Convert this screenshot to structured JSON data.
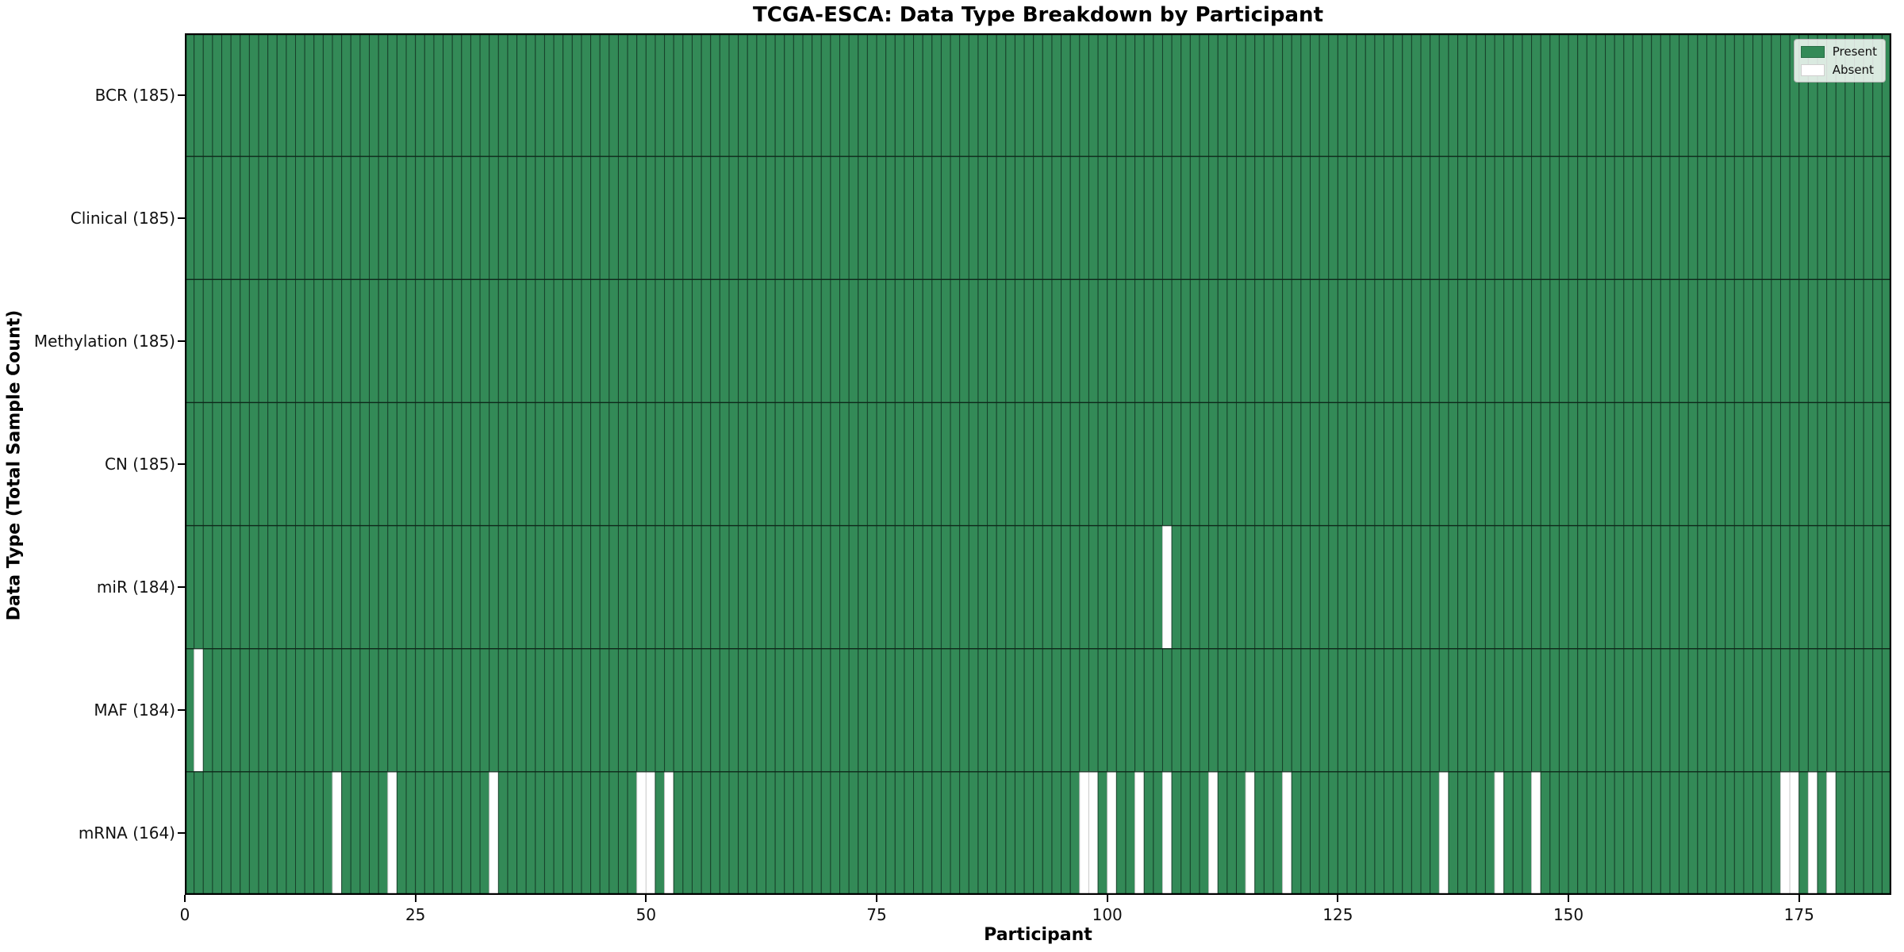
{
  "chart_data": {
    "type": "heatmap",
    "title": "TCGA-ESCA: Data Type Breakdown by Participant",
    "xlabel": "Participant",
    "ylabel": "Data Type (Total Sample Count)",
    "n_participants": 185,
    "x_axis": {
      "ticks": [
        0,
        25,
        50,
        75,
        100,
        125,
        150,
        175
      ],
      "range": [
        0,
        185
      ]
    },
    "legend": {
      "present_label": "Present",
      "absent_label": "Absent",
      "position": "upper right"
    },
    "colors": {
      "present": "#338a57",
      "absent": "#ffffff",
      "present_cell_border": "#17402a",
      "absent_cell_border": "#cccccc",
      "row_separator": "#0d2418",
      "frame": "#000000"
    },
    "rows": [
      {
        "label": "BCR",
        "count": 185,
        "display": "BCR (185)",
        "absent_participants": []
      },
      {
        "label": "Clinical",
        "count": 185,
        "display": "Clinical (185)",
        "absent_participants": []
      },
      {
        "label": "Methylation",
        "count": 185,
        "display": "Methylation (185)",
        "absent_participants": []
      },
      {
        "label": "CN",
        "count": 185,
        "display": "CN (185)",
        "absent_participants": []
      },
      {
        "label": "miR",
        "count": 184,
        "display": "miR (184)",
        "absent_participants": [
          106
        ]
      },
      {
        "label": "MAF",
        "count": 184,
        "display": "MAF (184)",
        "absent_participants": [
          1
        ]
      },
      {
        "label": "mRNA",
        "count": 164,
        "display": "mRNA (164)",
        "absent_participants": [
          16,
          22,
          33,
          49,
          50,
          52,
          97,
          98,
          100,
          103,
          106,
          111,
          115,
          119,
          136,
          142,
          146,
          173,
          174,
          176,
          178
        ]
      }
    ]
  }
}
